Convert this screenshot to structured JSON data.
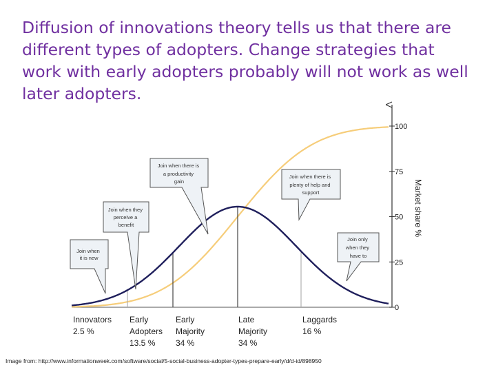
{
  "slide": {
    "title": "Diffusion of innovations theory tells us that there are different types of adopters. Change strategies that work with early adopters probably will not work as well later adopters.",
    "caption": "Image from: http://www.informationweek.com/software/social/5-social-business-adopter-types-prepare-early/d/d-id/898950"
  },
  "diagram": {
    "axis_title": "Market share %",
    "axis_ticks": [
      0,
      25,
      50,
      75,
      100
    ],
    "colors": {
      "bell_curve": "#1f1f5c",
      "s_curve": "#f6cd7a",
      "bubble_fill": "#eef2f6",
      "bubble_stroke": "#555555",
      "title": "#7030a0"
    },
    "segments": [
      {
        "line1": "Innovators",
        "line2": "2.5 %"
      },
      {
        "line1": "Early",
        "line2": "Adopters",
        "line3": "13.5 %"
      },
      {
        "line1": "Early",
        "line2": "Majority",
        "line3": "34 %"
      },
      {
        "line1": "Late",
        "line2": "Majority",
        "line3": "34 %"
      },
      {
        "line1": "Laggards",
        "line2": "16 %"
      }
    ],
    "bubbles": [
      {
        "lines": [
          "Join when",
          "it is new"
        ]
      },
      {
        "lines": [
          "Join when they",
          "perceive a",
          "benefit"
        ]
      },
      {
        "lines": [
          "Join when there is",
          "a productivity",
          "gain"
        ]
      },
      {
        "lines": [
          "Join when there is",
          "plenty of help and",
          "support"
        ]
      },
      {
        "lines": [
          "Join only",
          "when they",
          "have to"
        ]
      }
    ]
  }
}
